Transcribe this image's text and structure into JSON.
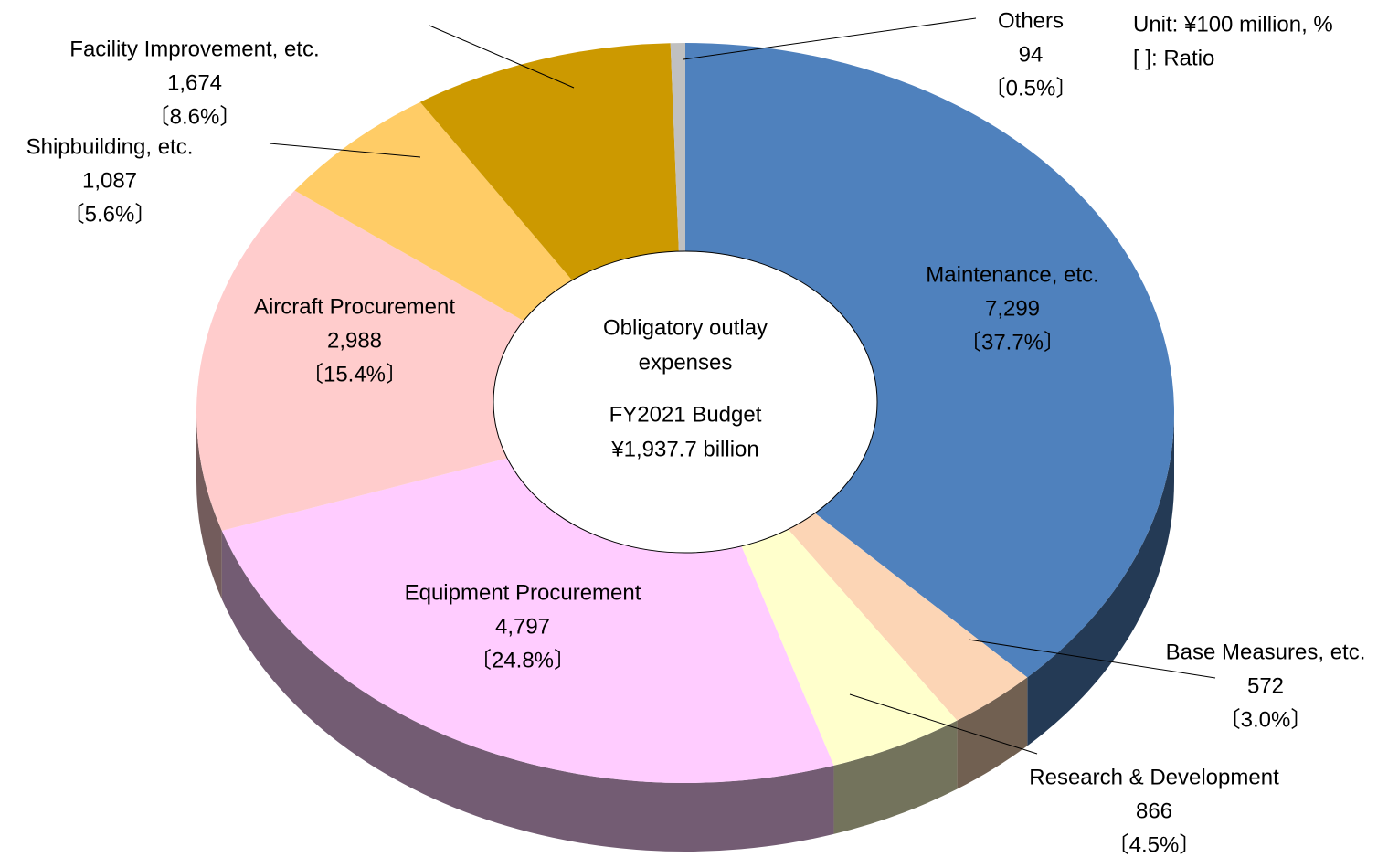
{
  "chart_data": {
    "type": "pie",
    "categories": [
      "Maintenance, etc.",
      "Base Measures, etc.",
      "Research & Development",
      "Equipment Procurement",
      "Aircraft Procurement",
      "Shipbuilding, etc.",
      "Facility Improvement, etc.",
      "Others"
    ],
    "values": [
      7299,
      572,
      866,
      4797,
      2988,
      1087,
      1674,
      94
    ],
    "value_labels": [
      "7,299",
      "572",
      "866",
      "4,797",
      "2,988",
      "1,087",
      "1,674",
      "94"
    ],
    "percents": [
      37.7,
      3.0,
      4.5,
      24.8,
      15.4,
      5.6,
      8.6,
      0.5
    ],
    "percent_labels": [
      "〔37.7%〕",
      "〔3.0%〕",
      "〔4.5%〕",
      "〔24.8%〕",
      "〔15.4%〕",
      "〔5.6%〕",
      "〔8.6%〕",
      "〔0.5%〕"
    ],
    "colors": [
      "#4f81bd",
      "#fcd5b5",
      "#ffffcc",
      "#ffccff",
      "#ffcccc",
      "#ffcc66",
      "#cc9900",
      "#c0c0c0"
    ],
    "center_text": [
      "Obligatory outlay",
      "expenses",
      "FY2021 Budget",
      "¥1,937.7 billion"
    ],
    "notes": [
      "Unit: ¥100 million, %",
      "[ ]: Ratio"
    ]
  }
}
